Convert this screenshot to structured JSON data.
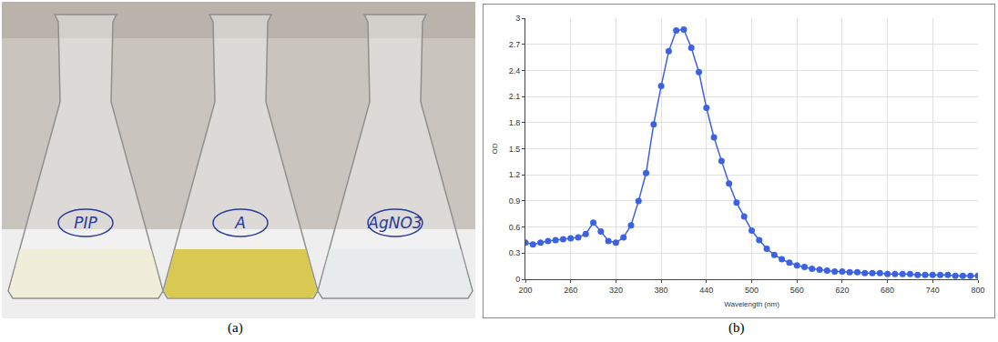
{
  "photo": {
    "caption": "(a)",
    "flask_labels": [
      "PIP",
      "A",
      "AgNO3"
    ]
  },
  "chart_caption": "(b)",
  "chart_data": {
    "type": "line",
    "x_label": "Wavelength (nm)",
    "y_label": "OD",
    "x": [
      200,
      210,
      220,
      230,
      240,
      250,
      260,
      270,
      280,
      290,
      300,
      310,
      320,
      330,
      340,
      350,
      360,
      370,
      380,
      390,
      400,
      410,
      420,
      430,
      440,
      450,
      460,
      470,
      480,
      490,
      500,
      510,
      520,
      530,
      540,
      550,
      560,
      570,
      580,
      590,
      600,
      610,
      620,
      630,
      640,
      650,
      660,
      670,
      680,
      690,
      700,
      710,
      720,
      730,
      740,
      750,
      760,
      770,
      780,
      790,
      800
    ],
    "values": [
      0.42,
      0.4,
      0.42,
      0.44,
      0.45,
      0.46,
      0.47,
      0.48,
      0.52,
      0.65,
      0.55,
      0.44,
      0.42,
      0.48,
      0.62,
      0.9,
      1.22,
      1.78,
      2.22,
      2.62,
      2.86,
      2.87,
      2.66,
      2.38,
      1.97,
      1.63,
      1.36,
      1.1,
      0.88,
      0.72,
      0.56,
      0.45,
      0.35,
      0.28,
      0.23,
      0.19,
      0.16,
      0.14,
      0.12,
      0.11,
      0.1,
      0.09,
      0.09,
      0.08,
      0.08,
      0.07,
      0.07,
      0.07,
      0.06,
      0.06,
      0.06,
      0.06,
      0.05,
      0.05,
      0.05,
      0.05,
      0.05,
      0.04,
      0.04,
      0.04,
      0.04
    ],
    "color": "#3b62e3",
    "marker": "circle",
    "line_style": "solid",
    "xlim": [
      200,
      800
    ],
    "xticks": [
      200,
      260,
      320,
      380,
      440,
      500,
      560,
      620,
      680,
      740,
      800
    ],
    "ylim": [
      0,
      3
    ],
    "yticks": [
      0,
      0.3,
      0.6,
      0.9,
      1.2,
      1.5,
      1.8,
      2.1,
      2.4,
      2.7,
      3
    ],
    "grid": true
  }
}
